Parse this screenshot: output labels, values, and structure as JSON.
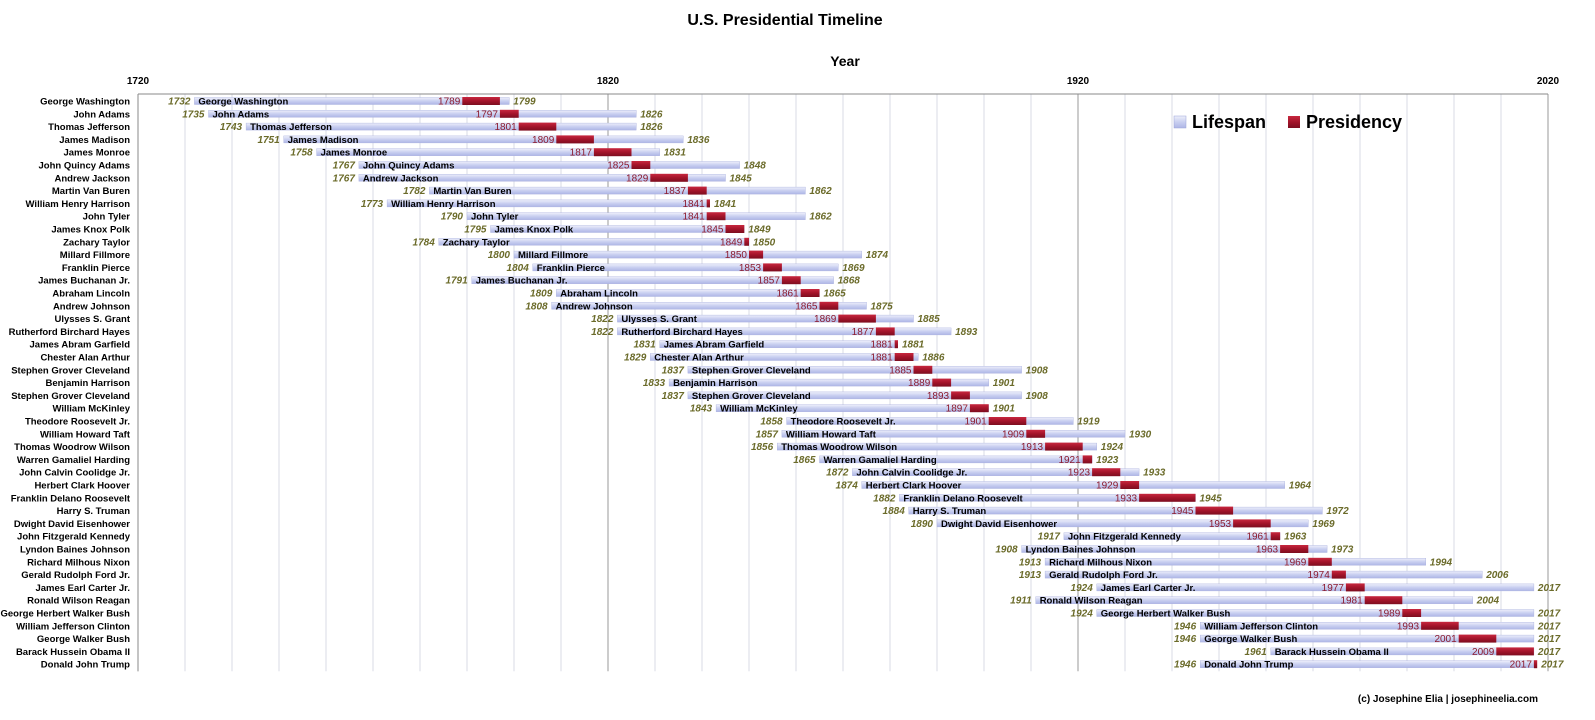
{
  "chart_data": {
    "type": "bar",
    "title": "U.S. Presidential Timeline",
    "xlabel": "Year",
    "xlim": [
      1720,
      2020
    ],
    "x_ticks": [
      "1720",
      "1820",
      "1920",
      "2020"
    ],
    "grid": "vertical every 10 years",
    "legend": {
      "placement": "top-right",
      "entries": [
        {
          "name": "Lifespan",
          "color": "#c5cbee"
        },
        {
          "name": "Presidency",
          "color": "#a3142a"
        }
      ]
    },
    "credit": "(c) Josephine Elia | josephineelia.com",
    "presidents": [
      {
        "name": "George Washington",
        "birth": 1732,
        "death": 1799,
        "start": 1789,
        "end": 1797
      },
      {
        "name": "John Adams",
        "birth": 1735,
        "death": 1826,
        "start": 1797,
        "end": 1801
      },
      {
        "name": "Thomas Jefferson",
        "birth": 1743,
        "death": 1826,
        "start": 1801,
        "end": 1809
      },
      {
        "name": "James Madison",
        "birth": 1751,
        "death": 1836,
        "start": 1809,
        "end": 1817
      },
      {
        "name": "James Monroe",
        "birth": 1758,
        "death": 1831,
        "start": 1817,
        "end": 1825
      },
      {
        "name": "John Quincy Adams",
        "birth": 1767,
        "death": 1848,
        "start": 1825,
        "end": 1829
      },
      {
        "name": "Andrew Jackson",
        "birth": 1767,
        "death": 1845,
        "start": 1829,
        "end": 1837
      },
      {
        "name": "Martin Van Buren",
        "birth": 1782,
        "death": 1862,
        "start": 1837,
        "end": 1841
      },
      {
        "name": "William Henry Harrison",
        "birth": 1773,
        "death": 1841,
        "start": 1841,
        "end": 1841
      },
      {
        "name": "John Tyler",
        "birth": 1790,
        "death": 1862,
        "start": 1841,
        "end": 1845
      },
      {
        "name": "James Knox Polk",
        "birth": 1795,
        "death": 1849,
        "start": 1845,
        "end": 1849
      },
      {
        "name": "Zachary Taylor",
        "birth": 1784,
        "death": 1850,
        "start": 1849,
        "end": 1850
      },
      {
        "name": "Millard Fillmore",
        "birth": 1800,
        "death": 1874,
        "start": 1850,
        "end": 1853
      },
      {
        "name": "Franklin Pierce",
        "birth": 1804,
        "death": 1869,
        "start": 1853,
        "end": 1857
      },
      {
        "name": "James Buchanan Jr.",
        "birth": 1791,
        "death": 1868,
        "start": 1857,
        "end": 1861
      },
      {
        "name": "Abraham Lincoln",
        "birth": 1809,
        "death": 1865,
        "start": 1861,
        "end": 1865
      },
      {
        "name": "Andrew Johnson",
        "birth": 1808,
        "death": 1875,
        "start": 1865,
        "end": 1869
      },
      {
        "name": "Ulysses S. Grant",
        "birth": 1822,
        "death": 1885,
        "start": 1869,
        "end": 1877
      },
      {
        "name": "Rutherford Birchard Hayes",
        "birth": 1822,
        "death": 1893,
        "start": 1877,
        "end": 1881
      },
      {
        "name": "James Abram Garfield",
        "birth": 1831,
        "death": 1881,
        "start": 1881,
        "end": 1881
      },
      {
        "name": "Chester Alan Arthur",
        "birth": 1829,
        "death": 1886,
        "start": 1881,
        "end": 1885
      },
      {
        "name": "Stephen Grover Cleveland",
        "birth": 1837,
        "death": 1908,
        "start": 1885,
        "end": 1889
      },
      {
        "name": "Benjamin Harrison",
        "birth": 1833,
        "death": 1901,
        "start": 1889,
        "end": 1893
      },
      {
        "name": "Stephen Grover Cleveland",
        "birth": 1837,
        "death": 1908,
        "start": 1893,
        "end": 1897
      },
      {
        "name": "William McKinley",
        "birth": 1843,
        "death": 1901,
        "start": 1897,
        "end": 1901
      },
      {
        "name": "Theodore Roosevelt Jr.",
        "birth": 1858,
        "death": 1919,
        "start": 1901,
        "end": 1909
      },
      {
        "name": "William Howard Taft",
        "birth": 1857,
        "death": 1930,
        "start": 1909,
        "end": 1913
      },
      {
        "name": "Thomas Woodrow Wilson",
        "birth": 1856,
        "death": 1924,
        "start": 1913,
        "end": 1921
      },
      {
        "name": "Warren Gamaliel Harding",
        "birth": 1865,
        "death": 1923,
        "start": 1921,
        "end": 1923
      },
      {
        "name": "John Calvin Coolidge Jr.",
        "birth": 1872,
        "death": 1933,
        "start": 1923,
        "end": 1929
      },
      {
        "name": "Herbert Clark Hoover",
        "birth": 1874,
        "death": 1964,
        "start": 1929,
        "end": 1933
      },
      {
        "name": "Franklin Delano Roosevelt",
        "birth": 1882,
        "death": 1945,
        "start": 1933,
        "end": 1945
      },
      {
        "name": "Harry S. Truman",
        "birth": 1884,
        "death": 1972,
        "start": 1945,
        "end": 1953
      },
      {
        "name": "Dwight David Eisenhower",
        "birth": 1890,
        "death": 1969,
        "start": 1953,
        "end": 1961
      },
      {
        "name": "John Fitzgerald Kennedy",
        "birth": 1917,
        "death": 1963,
        "start": 1961,
        "end": 1963
      },
      {
        "name": "Lyndon Baines Johnson",
        "birth": 1908,
        "death": 1973,
        "start": 1963,
        "end": 1969
      },
      {
        "name": "Richard Milhous Nixon",
        "birth": 1913,
        "death": 1994,
        "start": 1969,
        "end": 1974
      },
      {
        "name": "Gerald Rudolph Ford Jr.",
        "birth": 1913,
        "death": 2006,
        "start": 1974,
        "end": 1977
      },
      {
        "name": "James Earl Carter Jr.",
        "birth": 1924,
        "death": 2017,
        "start": 1977,
        "end": 1981
      },
      {
        "name": "Ronald Wilson Reagan",
        "birth": 1911,
        "death": 2004,
        "start": 1981,
        "end": 1989
      },
      {
        "name": "George Herbert Walker Bush",
        "birth": 1924,
        "death": 2017,
        "start": 1989,
        "end": 1993
      },
      {
        "name": "William Jefferson Clinton",
        "birth": 1946,
        "death": 2017,
        "start": 1993,
        "end": 2001
      },
      {
        "name": "George Walker Bush",
        "birth": 1946,
        "death": 2017,
        "start": 2001,
        "end": 2009
      },
      {
        "name": "Barack Hussein Obama II",
        "birth": 1961,
        "death": 2017,
        "start": 2009,
        "end": 2017
      },
      {
        "name": "Donald John Trump",
        "birth": 1946,
        "death": 2017,
        "start": 2017,
        "end": 2017
      }
    ]
  }
}
